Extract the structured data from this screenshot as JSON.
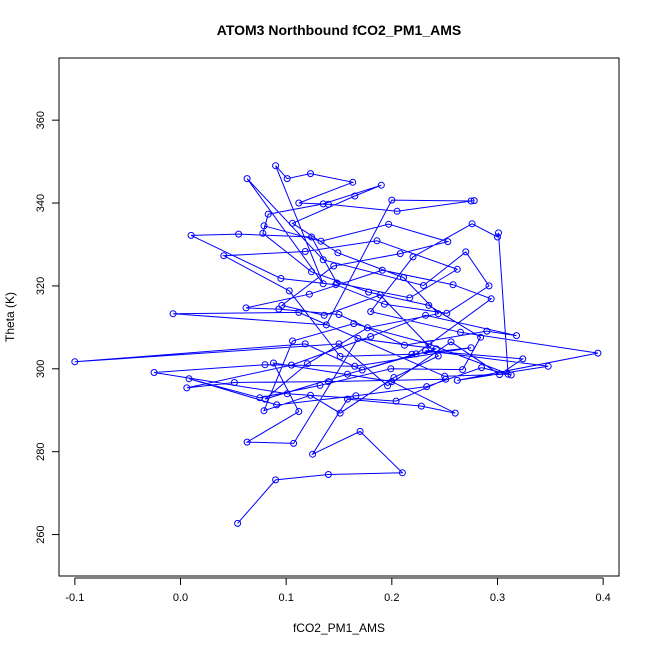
{
  "chart_data": {
    "type": "scatter",
    "title": "ATOM3 Northbound fCO2_PM1_AMS",
    "xlabel": "fCO2_PM1_AMS",
    "ylabel": "Theta (K)",
    "xlim": [
      -0.115,
      0.415
    ],
    "ylim": [
      250,
      375
    ],
    "xticks": [
      -0.1,
      0.0,
      0.1,
      0.2,
      0.3,
      0.4
    ],
    "xtick_labels": [
      "-0.1",
      "0.0",
      "0.1",
      "0.2",
      "0.3",
      "0.4"
    ],
    "yticks": [
      260,
      280,
      300,
      320,
      340,
      360
    ],
    "ytick_labels": [
      "260",
      "280",
      "300",
      "320",
      "340",
      "360"
    ],
    "grid": false,
    "legend": "none",
    "colors": {
      "series": "#0000ff",
      "axis": "#000000",
      "background": "#ffffff"
    },
    "series": [
      {
        "style": "lines+open-circles",
        "points": [
          [
            0.054,
            262.7
          ],
          [
            0.09,
            273.2
          ],
          [
            0.14,
            274.5
          ],
          [
            0.21,
            274.9
          ],
          [
            0.17,
            284.9
          ],
          [
            0.125,
            279.4
          ],
          [
            0.158,
            292.7
          ],
          [
            0.228,
            291.0
          ],
          [
            0.26,
            289.3
          ],
          [
            0.2,
            296.9
          ],
          [
            0.088,
            301.4
          ],
          [
            0.112,
            289.7
          ],
          [
            0.063,
            282.3
          ],
          [
            0.107,
            282.0
          ],
          [
            0.168,
            307.3
          ],
          [
            0.242,
            304.8
          ],
          [
            0.172,
            299.7
          ],
          [
            0.118,
            306.0
          ],
          [
            -0.1,
            301.7
          ],
          [
            0.15,
            306.0
          ],
          [
            0.196,
            295.9
          ],
          [
            0.256,
            306.5
          ],
          [
            0.302,
            298.6
          ],
          [
            0.324,
            302.4
          ],
          [
            0.232,
            304.4
          ],
          [
            0.348,
            300.6
          ],
          [
            0.262,
            297.2
          ],
          [
            0.395,
            303.8
          ],
          [
            0.265,
            308.8
          ],
          [
            0.18,
            313.8
          ],
          [
            0.22,
            327.0
          ],
          [
            0.276,
            335.0
          ],
          [
            0.3,
            331.8
          ],
          [
            0.301,
            332.8
          ],
          [
            0.31,
            298.7
          ],
          [
            0.25,
            298.2
          ],
          [
            0.112,
            313.6
          ],
          [
            -0.007,
            313.3
          ],
          [
            0.138,
            310.6
          ],
          [
            0.2,
            340.7
          ],
          [
            0.275,
            340.5
          ],
          [
            0.278,
            340.6
          ],
          [
            0.205,
            338.0
          ],
          [
            0.14,
            339.7
          ],
          [
            0.112,
            340.0
          ],
          [
            0.163,
            345.0
          ],
          [
            0.123,
            347.1
          ],
          [
            0.101,
            345.9
          ],
          [
            0.09,
            349.0
          ],
          [
            0.135,
            320.5
          ],
          [
            0.063,
            345.9
          ],
          [
            0.135,
            326.3
          ],
          [
            0.23,
            320.1
          ],
          [
            0.27,
            328.2
          ],
          [
            0.292,
            320.0
          ],
          [
            0.252,
            313.4
          ],
          [
            0.193,
            315.6
          ],
          [
            0.147,
            320.3
          ],
          [
            0.095,
            321.8
          ],
          [
            0.01,
            332.2
          ],
          [
            0.055,
            332.5
          ],
          [
            0.124,
            331.8
          ],
          [
            0.148,
            320.7
          ],
          [
            0.217,
            317.1
          ],
          [
            0.262,
            324.0
          ],
          [
            0.186,
            330.9
          ],
          [
            0.118,
            328.3
          ],
          [
            0.041,
            327.3
          ],
          [
            0.103,
            318.8
          ],
          [
            0.151,
            303.0
          ],
          [
            0.219,
            303.5
          ],
          [
            0.275,
            305.1
          ],
          [
            0.165,
            300.6
          ],
          [
            0.08,
            301.0
          ],
          [
            -0.025,
            299.1
          ],
          [
            0.101,
            294.0
          ],
          [
            0.204,
            292.2
          ],
          [
            0.251,
            297.5
          ],
          [
            0.14,
            296.9
          ],
          [
            0.051,
            296.7
          ],
          [
            0.006,
            295.4
          ],
          [
            0.105,
            300.9
          ],
          [
            0.18,
            307.8
          ],
          [
            0.232,
            312.9
          ],
          [
            0.318,
            308.0
          ],
          [
            0.29,
            309.1
          ],
          [
            0.212,
            305.7
          ],
          [
            0.15,
            313.1
          ],
          [
            0.093,
            314.4
          ],
          [
            0.062,
            314.7
          ],
          [
            0.122,
            318.0
          ],
          [
            0.191,
            323.8
          ],
          [
            0.258,
            320.3
          ],
          [
            0.294,
            316.9
          ],
          [
            0.223,
            303.6
          ],
          [
            0.158,
            298.7
          ],
          [
            0.08,
            292.7
          ],
          [
            0.12,
            301.2
          ],
          [
            0.177,
            309.9
          ],
          [
            0.244,
            313.3
          ],
          [
            0.211,
            322.0
          ],
          [
            0.149,
            328.0
          ],
          [
            0.106,
            335.1
          ],
          [
            0.165,
            341.7
          ],
          [
            0.19,
            344.3
          ],
          [
            0.135,
            339.8
          ],
          [
            0.083,
            337.3
          ],
          [
            0.078,
            332.7
          ],
          [
            0.124,
            323.4
          ],
          [
            0.178,
            318.5
          ],
          [
            0.235,
            315.3
          ],
          [
            0.284,
            307.6
          ],
          [
            0.267,
            299.8
          ],
          [
            0.199,
            300.0
          ],
          [
            0.132,
            296.0
          ],
          [
            0.075,
            293.0
          ],
          [
            0.008,
            297.6
          ],
          [
            0.091,
            291.3
          ],
          [
            0.166,
            293.5
          ],
          [
            0.233,
            295.7
          ],
          [
            0.285,
            300.3
          ],
          [
            0.313,
            298.5
          ],
          [
            0.235,
            306.0
          ],
          [
            0.164,
            310.9
          ],
          [
            0.106,
            306.7
          ],
          [
            0.079,
            289.9
          ],
          [
            0.123,
            293.6
          ],
          [
            0.151,
            289.3
          ],
          [
            0.202,
            297.9
          ],
          [
            0.244,
            303.1
          ],
          [
            0.189,
            317.8
          ],
          [
            0.136,
            312.9
          ],
          [
            0.096,
            315.3
          ],
          [
            0.145,
            324.8
          ],
          [
            0.208,
            327.8
          ],
          [
            0.253,
            330.7
          ],
          [
            0.197,
            334.9
          ],
          [
            0.133,
            330.8
          ],
          [
            0.079,
            334.5
          ]
        ]
      }
    ]
  }
}
